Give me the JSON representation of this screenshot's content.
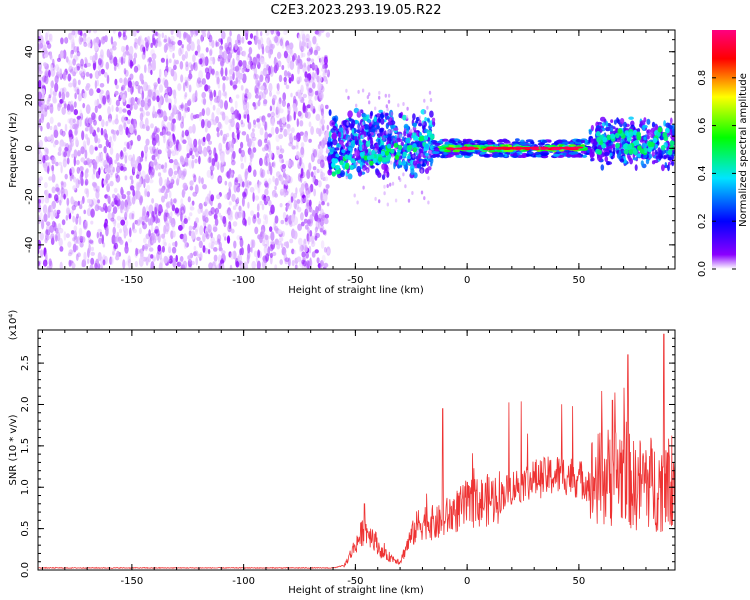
{
  "title": "C2E3.2023.293.19.05.R22",
  "chart_data": [
    {
      "type": "heatmap",
      "xlabel": "Height of straight line (km)",
      "ylabel": "Frequency (Hz)",
      "xlim": [
        -192,
        93
      ],
      "ylim": [
        -50,
        49
      ],
      "x_ticks": [
        -150,
        -100,
        -50,
        0,
        50
      ],
      "y_ticks": [
        -40,
        -20,
        0,
        20,
        40
      ],
      "colorbar": {
        "label": "Normalized spectral amplitude",
        "range": [
          0.0,
          1.0
        ],
        "ticks": [
          "0.0",
          "0.2",
          "0.4",
          "0.6",
          "0.8"
        ],
        "colormap": [
          "#ffffff",
          "#8a00ff",
          "#0000ff",
          "#00e5ff",
          "#00ff00",
          "#ffff00",
          "#ff0000",
          "#ff0080"
        ]
      },
      "regions": [
        {
          "x_range": [
            -192,
            -62
          ],
          "freq_range": [
            -50,
            49
          ],
          "amplitude": 0.05,
          "description": "broadband noise"
        },
        {
          "x_range": [
            -62,
            -15
          ],
          "freq_range": [
            -15,
            20
          ],
          "amplitude": 0.35
        },
        {
          "x_range": [
            -15,
            55
          ],
          "freq_range": [
            -3,
            3
          ],
          "amplitude": 0.9
        },
        {
          "x_range": [
            55,
            93
          ],
          "freq_range": [
            -8,
            15
          ],
          "amplitude": 0.45
        }
      ]
    },
    {
      "type": "line",
      "xlabel": "Height of straight line (km)",
      "ylabel": "SNR (10 * v/v)",
      "scale_note": "(x10⁴)",
      "xlim": [
        -192,
        93
      ],
      "ylim": [
        0,
        2.9
      ],
      "x_ticks": [
        -150,
        -100,
        -50,
        0,
        50
      ],
      "y_ticks": [
        "0.0",
        "0.5",
        "1.0",
        "1.5",
        "2.0",
        "2.5"
      ],
      "series": [
        {
          "color": "#ee3333",
          "x": [
            -192,
            -150,
            -100,
            -60,
            -55,
            -50,
            -46,
            -42,
            -38,
            -34,
            -30,
            -26,
            -22,
            -18,
            -14,
            -10,
            -6,
            -2,
            2,
            6,
            10,
            15,
            20,
            25,
            30,
            35,
            40,
            45,
            50,
            55,
            60,
            65,
            70,
            75,
            80,
            85,
            90,
            93
          ],
          "y": [
            0.02,
            0.02,
            0.02,
            0.02,
            0.05,
            0.3,
            0.5,
            0.4,
            0.2,
            0.15,
            0.1,
            0.35,
            0.55,
            0.6,
            0.55,
            0.62,
            0.7,
            0.75,
            0.8,
            0.82,
            0.85,
            0.9,
            1.0,
            1.05,
            1.1,
            1.12,
            1.15,
            1.15,
            1.1,
            1.05,
            1.1,
            1.15,
            1.2,
            1.0,
            1.1,
            1.0,
            1.05,
            1.2
          ],
          "peaks": [
            [
              -46,
              0.8
            ],
            [
              -11,
              1.95
            ],
            [
              65,
              2.05
            ],
            [
              72,
              2.6
            ],
            [
              88,
              2.85
            ]
          ]
        }
      ]
    }
  ]
}
